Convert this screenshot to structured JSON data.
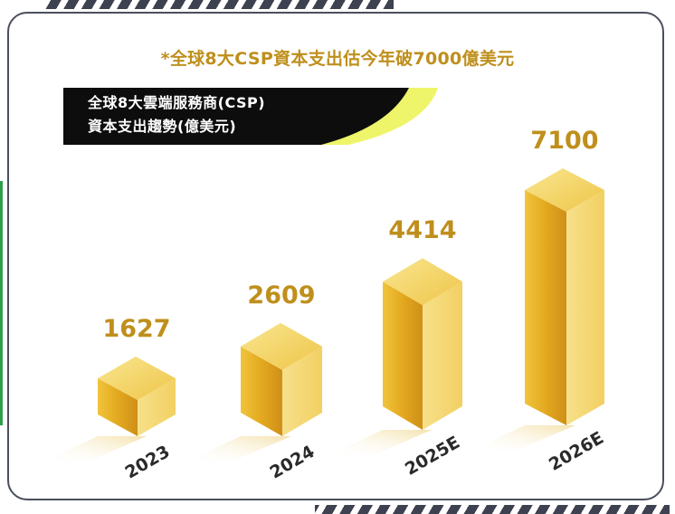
{
  "headline": "*全球8大CSP資本支出估今年破7000億美元",
  "label": {
    "line1": "全球8大雲端服務商(CSP)",
    "line2": "資本支出趨勢(億美元)"
  },
  "colors": {
    "accent": "#bf8f1c",
    "label_bg": "#0d0d0d",
    "label_highlight": "#eef56a",
    "frame": "#4a4f5c"
  },
  "chart_data": {
    "type": "bar",
    "title": "全球8大雲端服務商(CSP)資本支出趨勢(億美元)",
    "categories": [
      "2023",
      "2024",
      "2025E",
      "2026E"
    ],
    "values": [
      1627,
      2609,
      4414,
      7100
    ],
    "value_labels": [
      "1627",
      "2609",
      "4414",
      "7100"
    ],
    "ylim": [
      0,
      7100
    ],
    "grid": false,
    "legend": "none"
  }
}
